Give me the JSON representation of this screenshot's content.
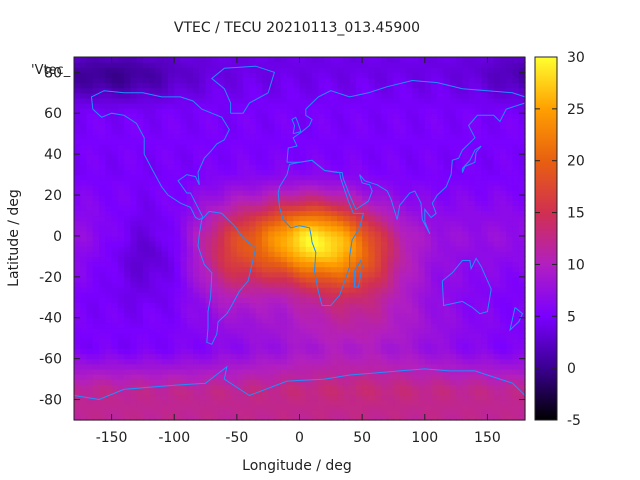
{
  "chart_data": {
    "type": "heatmap",
    "title": "VTEC / TECU 20210113_013.45900",
    "xlabel": "Longitude / deg",
    "ylabel": "Latitude / deg",
    "xlim": [
      -180,
      180
    ],
    "ylim": [
      -90,
      87.5
    ],
    "xticks": [
      -150,
      -100,
      -50,
      0,
      50,
      100,
      150
    ],
    "yticks": [
      -80,
      -60,
      -40,
      -20,
      0,
      20,
      40,
      60,
      80
    ],
    "colorbar": {
      "range": [
        -5,
        30
      ],
      "ticks": [
        -5,
        0,
        5,
        10,
        15,
        20,
        25,
        30
      ],
      "palette": [
        "#000000",
        "#3a0090",
        "#7a00ff",
        "#b21fc0",
        "#d13050",
        "#e86010",
        "#ffa000",
        "#ffff30"
      ]
    },
    "series_label": "'Vtec_",
    "overlay": "coastlines",
    "coastline_color": "#1e90ff",
    "grid_resolution": {
      "dlon": 5,
      "dlat": 2.5
    },
    "features": [
      {
        "lon": 5,
        "lat": -2,
        "amp": 19,
        "slon": 32,
        "slat": 14
      },
      {
        "lon": 45,
        "lat": -12,
        "amp": 8,
        "slon": 28,
        "slat": 16
      },
      {
        "lon": -55,
        "lat": -10,
        "amp": 7,
        "slon": 22,
        "slat": 18
      },
      {
        "lon": 40,
        "lat": -45,
        "amp": 5,
        "slon": 60,
        "slat": 18
      },
      {
        "lon": -120,
        "lat": -5,
        "amp": -4,
        "slon": 25,
        "slat": 15
      },
      {
        "lon": -150,
        "lat": 78,
        "amp": -4,
        "slon": 40,
        "slat": 8
      }
    ],
    "baseline": {
      "equatorial": 7.5,
      "midlat": 5,
      "polar_south": 12,
      "polar_north": 4
    }
  },
  "coastlines": {
    "north_america": [
      [
        -165,
        62
      ],
      [
        -158,
        58
      ],
      [
        -150,
        60
      ],
      [
        -140,
        59
      ],
      [
        -130,
        55
      ],
      [
        -124,
        48
      ],
      [
        -124,
        40
      ],
      [
        -118,
        33
      ],
      [
        -110,
        24
      ],
      [
        -105,
        20
      ],
      [
        -95,
        16
      ],
      [
        -87,
        14
      ],
      [
        -83,
        9
      ],
      [
        -80,
        8
      ],
      [
        -77,
        9
      ],
      [
        -82,
        15
      ],
      [
        -87,
        21
      ],
      [
        -90,
        21
      ],
      [
        -97,
        27
      ],
      [
        -90,
        30
      ],
      [
        -83,
        29
      ],
      [
        -80,
        25
      ],
      [
        -81,
        31
      ],
      [
        -76,
        38
      ],
      [
        -70,
        42
      ],
      [
        -66,
        45
      ],
      [
        -60,
        47
      ],
      [
        -56,
        52
      ],
      [
        -62,
        58
      ],
      [
        -70,
        60
      ],
      [
        -78,
        62
      ],
      [
        -85,
        66
      ],
      [
        -95,
        68
      ],
      [
        -110,
        68
      ],
      [
        -125,
        70
      ],
      [
        -140,
        70
      ],
      [
        -156,
        71
      ],
      [
        -166,
        68
      ],
      [
        -165,
        62
      ]
    ],
    "greenland": [
      [
        -55,
        60
      ],
      [
        -45,
        60
      ],
      [
        -40,
        65
      ],
      [
        -25,
        70
      ],
      [
        -20,
        80
      ],
      [
        -35,
        83
      ],
      [
        -60,
        82
      ],
      [
        -70,
        77
      ],
      [
        -60,
        72
      ],
      [
        -55,
        65
      ],
      [
        -55,
        60
      ]
    ],
    "south_america": [
      [
        -78,
        8
      ],
      [
        -72,
        12
      ],
      [
        -62,
        11
      ],
      [
        -52,
        5
      ],
      [
        -45,
        -1
      ],
      [
        -35,
        -6
      ],
      [
        -38,
        -14
      ],
      [
        -41,
        -22
      ],
      [
        -48,
        -27
      ],
      [
        -55,
        -35
      ],
      [
        -58,
        -38
      ],
      [
        -65,
        -42
      ],
      [
        -66,
        -48
      ],
      [
        -70,
        -53
      ],
      [
        -74,
        -52
      ],
      [
        -73,
        -45
      ],
      [
        -73,
        -37
      ],
      [
        -71,
        -30
      ],
      [
        -70,
        -18
      ],
      [
        -76,
        -14
      ],
      [
        -81,
        -5
      ],
      [
        -80,
        1
      ],
      [
        -78,
        8
      ]
    ],
    "eurasia": [
      [
        -10,
        36
      ],
      [
        -9,
        43
      ],
      [
        -2,
        44
      ],
      [
        -5,
        48
      ],
      [
        2,
        51
      ],
      [
        8,
        54
      ],
      [
        10,
        57
      ],
      [
        5,
        59
      ],
      [
        5,
        62
      ],
      [
        15,
        68
      ],
      [
        25,
        71
      ],
      [
        40,
        68
      ],
      [
        55,
        70
      ],
      [
        70,
        73
      ],
      [
        90,
        76
      ],
      [
        110,
        75
      ],
      [
        130,
        72
      ],
      [
        150,
        71
      ],
      [
        170,
        70
      ],
      [
        180,
        68
      ],
      [
        180,
        65
      ],
      [
        165,
        62
      ],
      [
        160,
        56
      ],
      [
        155,
        59
      ],
      [
        142,
        59
      ],
      [
        135,
        54
      ],
      [
        140,
        48
      ],
      [
        130,
        42
      ],
      [
        127,
        38
      ],
      [
        122,
        37
      ],
      [
        121,
        30
      ],
      [
        117,
        24
      ],
      [
        110,
        20
      ],
      [
        106,
        16
      ],
      [
        109,
        11
      ],
      [
        105,
        9
      ],
      [
        100,
        13
      ],
      [
        100,
        7
      ],
      [
        104,
        1
      ],
      [
        98,
        8
      ],
      [
        97,
        16
      ],
      [
        92,
        22
      ],
      [
        88,
        21
      ],
      [
        80,
        15
      ],
      [
        78,
        8
      ],
      [
        73,
        18
      ],
      [
        70,
        22
      ],
      [
        62,
        25
      ],
      [
        57,
        26
      ],
      [
        52,
        27
      ],
      [
        48,
        30
      ],
      [
        50,
        26
      ],
      [
        56,
        25
      ],
      [
        58,
        22
      ],
      [
        55,
        17
      ],
      [
        45,
        13
      ],
      [
        40,
        20
      ],
      [
        35,
        28
      ],
      [
        34,
        31
      ],
      [
        30,
        31
      ],
      [
        20,
        32
      ],
      [
        10,
        37
      ],
      [
        0,
        36
      ],
      [
        -10,
        36
      ]
    ],
    "africa": [
      [
        -17,
        21
      ],
      [
        -16,
        14
      ],
      [
        -13,
        8
      ],
      [
        -7,
        4
      ],
      [
        0,
        5
      ],
      [
        8,
        4
      ],
      [
        9,
        1
      ],
      [
        10,
        -3
      ],
      [
        13,
        -8
      ],
      [
        12,
        -17
      ],
      [
        15,
        -27
      ],
      [
        18,
        -34
      ],
      [
        25,
        -34
      ],
      [
        32,
        -29
      ],
      [
        35,
        -24
      ],
      [
        40,
        -15
      ],
      [
        40,
        -10
      ],
      [
        42,
        -2
      ],
      [
        48,
        4
      ],
      [
        51,
        11
      ],
      [
        43,
        11
      ],
      [
        39,
        17
      ],
      [
        33,
        28
      ],
      [
        32,
        31
      ],
      [
        20,
        32
      ],
      [
        10,
        37
      ],
      [
        0,
        36
      ],
      [
        -8,
        35
      ],
      [
        -10,
        30
      ],
      [
        -16,
        24
      ],
      [
        -17,
        21
      ]
    ],
    "madagascar": [
      [
        44,
        -25
      ],
      [
        47,
        -25
      ],
      [
        50,
        -15
      ],
      [
        49,
        -12
      ],
      [
        44,
        -17
      ],
      [
        44,
        -25
      ]
    ],
    "australia": [
      [
        114,
        -22
      ],
      [
        122,
        -18
      ],
      [
        130,
        -12
      ],
      [
        136,
        -12
      ],
      [
        137,
        -16
      ],
      [
        141,
        -11
      ],
      [
        145,
        -15
      ],
      [
        153,
        -26
      ],
      [
        150,
        -37
      ],
      [
        144,
        -38
      ],
      [
        138,
        -35
      ],
      [
        130,
        -32
      ],
      [
        115,
        -34
      ],
      [
        114,
        -22
      ]
    ],
    "antarctica": [
      [
        -180,
        -78
      ],
      [
        -160,
        -80
      ],
      [
        -140,
        -75
      ],
      [
        -100,
        -73
      ],
      [
        -75,
        -72
      ],
      [
        -58,
        -64
      ],
      [
        -60,
        -70
      ],
      [
        -40,
        -78
      ],
      [
        -10,
        -71
      ],
      [
        20,
        -70
      ],
      [
        40,
        -68
      ],
      [
        60,
        -67
      ],
      [
        80,
        -66
      ],
      [
        100,
        -65
      ],
      [
        120,
        -66
      ],
      [
        140,
        -66
      ],
      [
        160,
        -70
      ],
      [
        170,
        -72
      ],
      [
        180,
        -78
      ]
    ],
    "new_zealand": [
      [
        172,
        -35
      ],
      [
        178,
        -38
      ],
      [
        175,
        -42
      ],
      [
        168,
        -46
      ],
      [
        172,
        -35
      ]
    ],
    "japan": [
      [
        130,
        31
      ],
      [
        132,
        34
      ],
      [
        136,
        35
      ],
      [
        140,
        36
      ],
      [
        141,
        41
      ],
      [
        145,
        44
      ],
      [
        140,
        42
      ],
      [
        136,
        37
      ],
      [
        130,
        33
      ],
      [
        130,
        31
      ]
    ],
    "britain": [
      [
        -5,
        50
      ],
      [
        1,
        51
      ],
      [
        -1,
        55
      ],
      [
        -3,
        58
      ],
      [
        -6,
        57
      ],
      [
        -4,
        54
      ],
      [
        -5,
        50
      ]
    ]
  }
}
